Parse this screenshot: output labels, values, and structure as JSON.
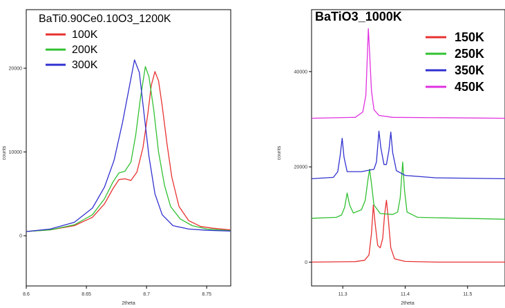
{
  "chart_data": [
    {
      "type": "line",
      "title": "BaTi0.90Ce0.10O3_1200K",
      "xlabel": "2theta",
      "ylabel": "counts",
      "xlim": [
        8.6,
        8.77
      ],
      "ylim": [
        -6000,
        27000
      ],
      "x_ticks": [
        "8.6",
        "8.65",
        "8.7",
        "8.75"
      ],
      "x_tick_values": [
        8.6,
        8.65,
        8.7,
        8.75
      ],
      "y_ticks": [
        "0",
        "10000",
        "20000"
      ],
      "y_tick_values": [
        0,
        10000,
        20000
      ],
      "legend_position": "top-left",
      "series": [
        {
          "name": "100K",
          "color": "#e83030",
          "points": [
            [
              8.6,
              500
            ],
            [
              8.62,
              700
            ],
            [
              8.64,
              1200
            ],
            [
              8.655,
              2200
            ],
            [
              8.665,
              3800
            ],
            [
              8.672,
              5600
            ],
            [
              8.677,
              6700
            ],
            [
              8.682,
              6800
            ],
            [
              8.687,
              6600
            ],
            [
              8.692,
              7600
            ],
            [
              8.697,
              10500
            ],
            [
              8.701,
              14500
            ],
            [
              8.704,
              18000
            ],
            [
              8.707,
              19600
            ],
            [
              8.71,
              18500
            ],
            [
              8.713,
              15500
            ],
            [
              8.717,
              11000
            ],
            [
              8.721,
              7000
            ],
            [
              8.727,
              3500
            ],
            [
              8.735,
              1800
            ],
            [
              8.745,
              1100
            ],
            [
              8.755,
              900
            ],
            [
              8.77,
              700
            ]
          ]
        },
        {
          "name": "200K",
          "color": "#30c030",
          "points": [
            [
              8.6,
              500
            ],
            [
              8.62,
              700
            ],
            [
              8.64,
              1300
            ],
            [
              8.655,
              2500
            ],
            [
              8.665,
              4400
            ],
            [
              8.672,
              6400
            ],
            [
              8.677,
              7500
            ],
            [
              8.682,
              7700
            ],
            [
              8.687,
              8800
            ],
            [
              8.691,
              12000
            ],
            [
              8.695,
              16500
            ],
            [
              8.699,
              20200
            ],
            [
              8.702,
              19000
            ],
            [
              8.706,
              15000
            ],
            [
              8.71,
              10000
            ],
            [
              8.715,
              6000
            ],
            [
              8.72,
              3500
            ],
            [
              8.728,
              2000
            ],
            [
              8.738,
              1200
            ],
            [
              8.75,
              800
            ],
            [
              8.77,
              600
            ]
          ]
        },
        {
          "name": "300K",
          "color": "#3030d0",
          "points": [
            [
              8.6,
              500
            ],
            [
              8.62,
              800
            ],
            [
              8.64,
              1600
            ],
            [
              8.655,
              3300
            ],
            [
              8.665,
              5800
            ],
            [
              8.673,
              9000
            ],
            [
              8.68,
              13500
            ],
            [
              8.686,
              18000
            ],
            [
              8.69,
              21000
            ],
            [
              8.694,
              19500
            ],
            [
              8.698,
              14500
            ],
            [
              8.702,
              9500
            ],
            [
              8.707,
              5000
            ],
            [
              8.713,
              2500
            ],
            [
              8.722,
              1200
            ],
            [
              8.735,
              800
            ],
            [
              8.75,
              650
            ],
            [
              8.77,
              550
            ]
          ]
        }
      ]
    },
    {
      "type": "line",
      "title": "BaTiO3_1000K",
      "xlabel": "2theta",
      "ylabel": "counts",
      "xlim": [
        11.25,
        11.56
      ],
      "ylim": [
        -5000,
        53000
      ],
      "x_ticks": [
        "11.3",
        "11.4",
        "11.5"
      ],
      "x_tick_values": [
        11.3,
        11.4,
        11.5
      ],
      "y_ticks": [
        "0",
        "20000",
        "40000"
      ],
      "y_tick_values": [
        0,
        20000,
        40000
      ],
      "legend_position": "top-right",
      "series": [
        {
          "name": "150K",
          "color": "#e83030",
          "points": [
            [
              11.25,
              0
            ],
            [
              11.32,
              100
            ],
            [
              11.335,
              400
            ],
            [
              11.342,
              1500
            ],
            [
              11.346,
              6000
            ],
            [
              11.349,
              12000
            ],
            [
              11.352,
              8000
            ],
            [
              11.356,
              3500
            ],
            [
              11.36,
              3000
            ],
            [
              11.364,
              5000
            ],
            [
              11.367,
              10000
            ],
            [
              11.37,
              13000
            ],
            [
              11.373,
              9000
            ],
            [
              11.377,
              3000
            ],
            [
              11.383,
              700
            ],
            [
              11.4,
              150
            ],
            [
              11.45,
              0
            ],
            [
              11.56,
              0
            ]
          ]
        },
        {
          "name": "250K",
          "color": "#30c030",
          "points": [
            [
              11.25,
              9200
            ],
            [
              11.29,
              9400
            ],
            [
              11.298,
              9900
            ],
            [
              11.303,
              11500
            ],
            [
              11.307,
              14500
            ],
            [
              11.311,
              12000
            ],
            [
              11.317,
              10300
            ],
            [
              11.33,
              11000
            ],
            [
              11.336,
              13000
            ],
            [
              11.34,
              17000
            ],
            [
              11.343,
              19500
            ],
            [
              11.346,
              16500
            ],
            [
              11.35,
              12000
            ],
            [
              11.36,
              10200
            ],
            [
              11.38,
              10000
            ],
            [
              11.388,
              10500
            ],
            [
              11.392,
              13500
            ],
            [
              11.396,
              21000
            ],
            [
              11.399,
              15000
            ],
            [
              11.403,
              10500
            ],
            [
              11.42,
              9400
            ],
            [
              11.56,
              9000
            ]
          ]
        },
        {
          "name": "350K",
          "color": "#3030d0",
          "points": [
            [
              11.25,
              17500
            ],
            [
              11.285,
              17800
            ],
            [
              11.292,
              19000
            ],
            [
              11.296,
              22500
            ],
            [
              11.299,
              26000
            ],
            [
              11.302,
              22000
            ],
            [
              11.307,
              19000
            ],
            [
              11.33,
              19000
            ],
            [
              11.35,
              19500
            ],
            [
              11.354,
              21000
            ],
            [
              11.358,
              27500
            ],
            [
              11.361,
              24000
            ],
            [
              11.366,
              20500
            ],
            [
              11.37,
              20500
            ],
            [
              11.374,
              23500
            ],
            [
              11.377,
              27300
            ],
            [
              11.38,
              23000
            ],
            [
              11.386,
              19200
            ],
            [
              11.4,
              18200
            ],
            [
              11.45,
              17700
            ],
            [
              11.56,
              17500
            ]
          ]
        },
        {
          "name": "450K",
          "color": "#e030e0",
          "points": [
            [
              11.25,
              30200
            ],
            [
              11.32,
              30400
            ],
            [
              11.332,
              31500
            ],
            [
              11.337,
              35000
            ],
            [
              11.339,
              42000
            ],
            [
              11.341,
              49000
            ],
            [
              11.343,
              44000
            ],
            [
              11.346,
              36000
            ],
            [
              11.35,
              32000
            ],
            [
              11.358,
              30800
            ],
            [
              11.38,
              30400
            ],
            [
              11.56,
              30200
            ]
          ]
        }
      ]
    }
  ]
}
